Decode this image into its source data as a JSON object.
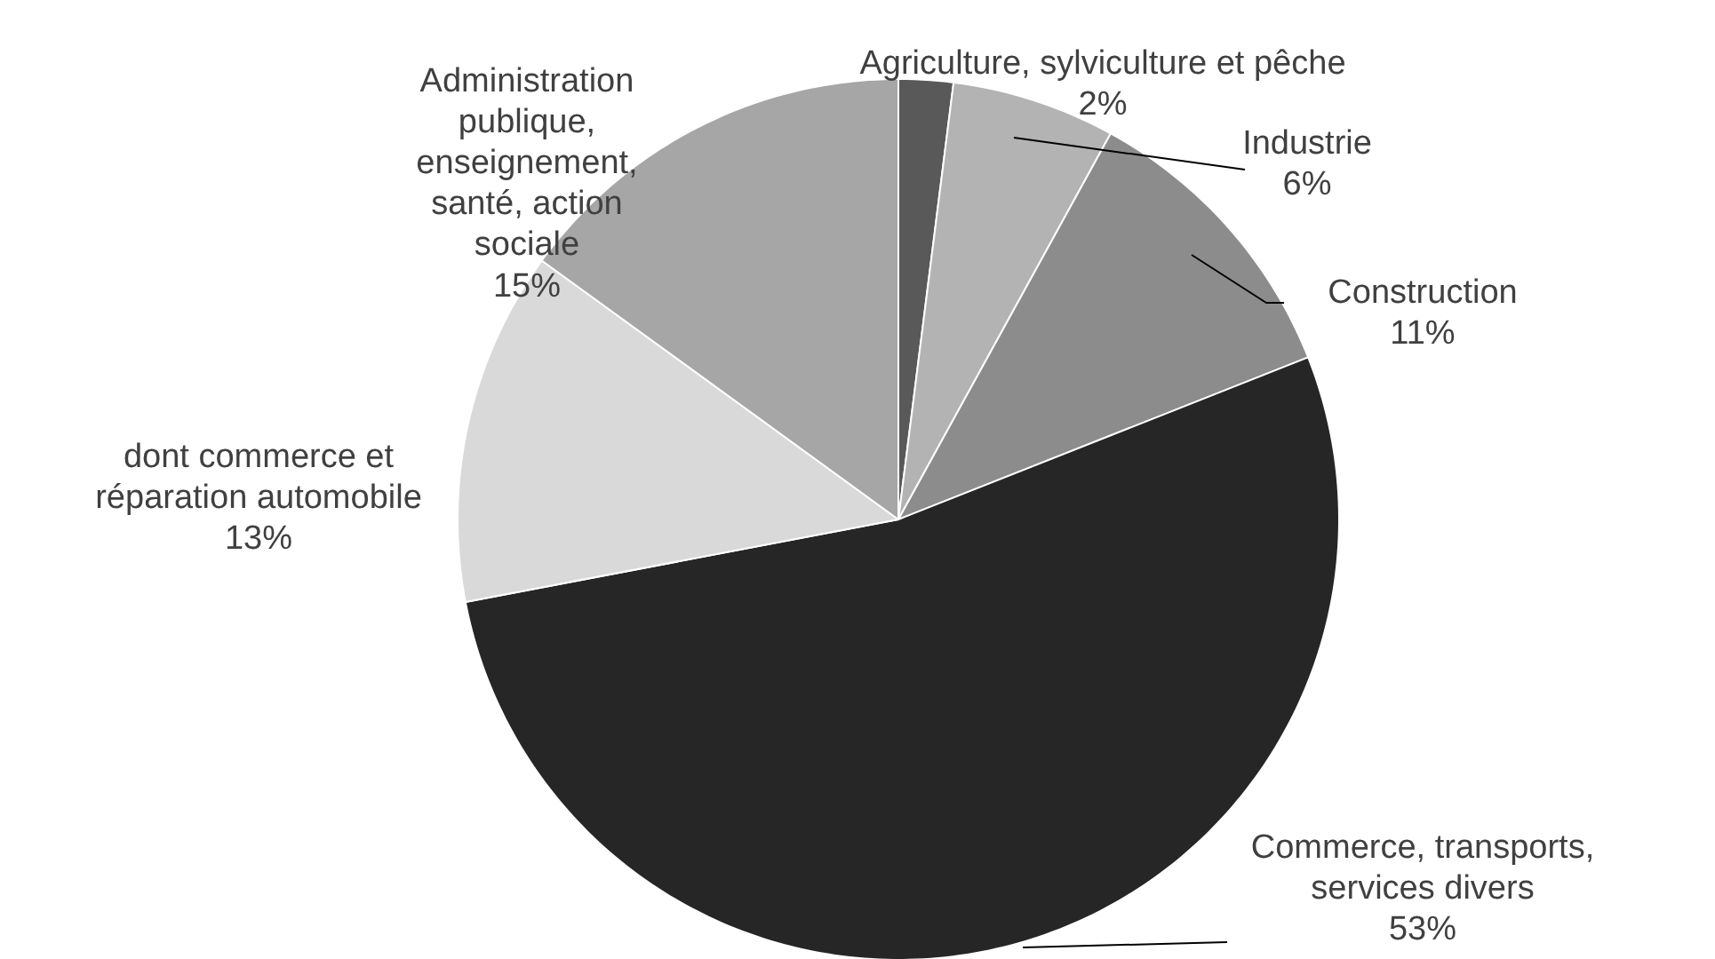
{
  "chart_data": {
    "type": "pie",
    "categories": [
      "Agriculture, sylviculture et pêche",
      "Industrie",
      "Construction",
      "Commerce, transports, services divers",
      "dont commerce et réparation automobile",
      "Administration publique, enseignement, santé, action sociale"
    ],
    "values": [
      2,
      6,
      11,
      53,
      13,
      15
    ],
    "colors": [
      "#595959",
      "#b3b3b3",
      "#8c8c8c",
      "#262626",
      "#d9d9d9",
      "#a6a6a6"
    ],
    "value_labels": [
      "2%",
      "6%",
      "11%",
      "53%",
      "13%",
      "15%"
    ]
  }
}
